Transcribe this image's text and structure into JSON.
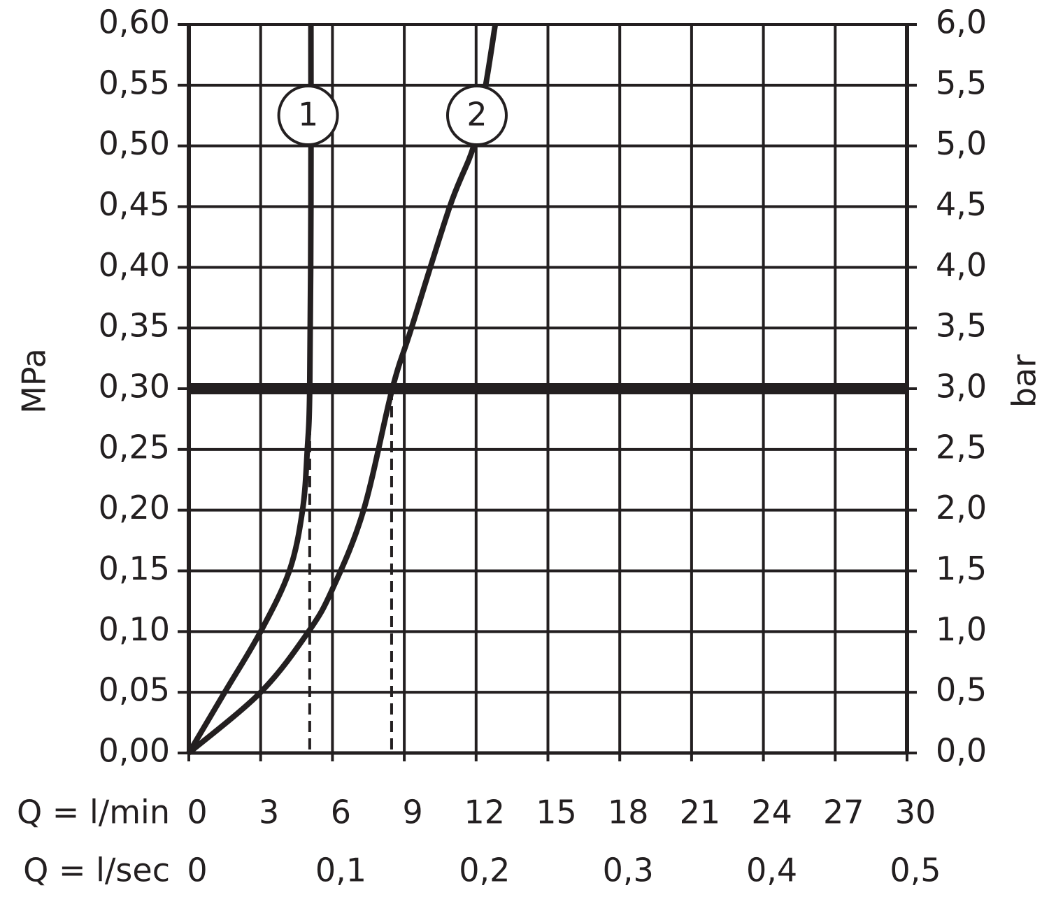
{
  "chart_data": {
    "type": "line",
    "xlabel": "Q = l/min",
    "x2label": "Q = l/sec",
    "ylabel": "MPa",
    "y2label": "bar",
    "xlim": [
      0,
      30
    ],
    "xticks": [
      0,
      3,
      6,
      9,
      12,
      15,
      18,
      21,
      24,
      27,
      30
    ],
    "x2lim": [
      0,
      0.5
    ],
    "x2ticks": [
      0,
      {
        "value": 0.1,
        "label": "0,1"
      },
      {
        "value": 0.2,
        "label": "0,2"
      },
      {
        "value": 0.3,
        "label": "0,3"
      },
      {
        "value": 0.4,
        "label": "0,4"
      },
      {
        "value": 0.5,
        "label": "0,5"
      }
    ],
    "ylim": [
      0,
      0.6
    ],
    "yticks": [
      {
        "value": 0,
        "label": "0,00"
      },
      {
        "value": 0.05,
        "label": "0,05"
      },
      {
        "value": 0.1,
        "label": "0,10"
      },
      {
        "value": 0.15,
        "label": "0,15"
      },
      {
        "value": 0.2,
        "label": "0,20"
      },
      {
        "value": 0.25,
        "label": "0,25"
      },
      {
        "value": 0.3,
        "label": "0,30"
      },
      {
        "value": 0.35,
        "label": "0,35"
      },
      {
        "value": 0.4,
        "label": "0,40"
      },
      {
        "value": 0.45,
        "label": "0,45"
      },
      {
        "value": 0.5,
        "label": "0,50"
      },
      {
        "value": 0.55,
        "label": "0,55"
      },
      {
        "value": 0.6,
        "label": "0,60"
      }
    ],
    "y2lim": [
      0,
      6
    ],
    "y2ticks": [
      {
        "value": 0,
        "label": "0,0"
      },
      {
        "value": 0.5,
        "label": "0,5"
      },
      {
        "value": 1,
        "label": "1,0"
      },
      {
        "value": 1.5,
        "label": "1,5"
      },
      {
        "value": 2,
        "label": "2,0"
      },
      {
        "value": 2.5,
        "label": "2,5"
      },
      {
        "value": 3,
        "label": "3,0"
      },
      {
        "value": 3.5,
        "label": "3,5"
      },
      {
        "value": 4,
        "label": "4,0"
      },
      {
        "value": 4.5,
        "label": "4,5"
      },
      {
        "value": 5,
        "label": "5,0"
      },
      {
        "value": 5.5,
        "label": "5,5"
      },
      {
        "value": 6,
        "label": "6,0"
      }
    ],
    "grid": true,
    "reference_line": 0.3,
    "drop_lines": [
      {
        "x": 5.05,
        "y": 0.3
      },
      {
        "x": 8.47,
        "y": 0.3
      }
    ],
    "series": [
      {
        "name": "1",
        "color": "#231f20",
        "x": [
          0,
          1.5,
          3,
          4.2,
          4.75,
          4.95,
          5.05,
          5.1,
          5.1
        ],
        "values": [
          0,
          0.05,
          0.1,
          0.15,
          0.2,
          0.25,
          0.3,
          0.45,
          0.6
        ]
      },
      {
        "name": "2",
        "color": "#231f20",
        "x": [
          0,
          3,
          5,
          6,
          7.3,
          8.5,
          9.3,
          10.9,
          11.9,
          12.4,
          12.8
        ],
        "values": [
          0,
          0.05,
          0.1,
          0.135,
          0.2,
          0.3,
          0.35,
          0.45,
          0.5,
          0.55,
          0.6
        ]
      }
    ]
  }
}
